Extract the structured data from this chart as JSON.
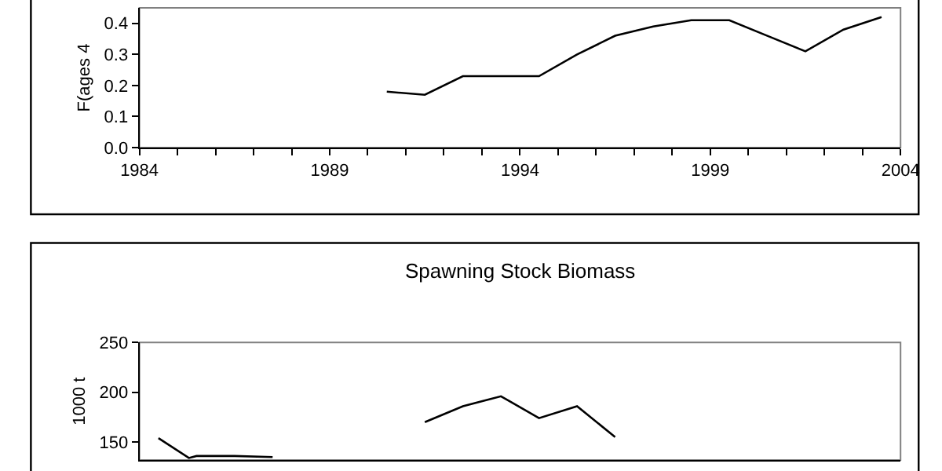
{
  "chart_data": [
    {
      "type": "line",
      "ylabel": "F(ages 4",
      "x": [
        1990.5,
        1991.5,
        1992.5,
        1993.5,
        1994.5,
        1995.5,
        1996.5,
        1997.5,
        1998.5,
        1999.5,
        2000.5,
        2001.5,
        2002.5,
        2003.5
      ],
      "series": [
        {
          "color": "#000000",
          "values": [
            0.18,
            0.17,
            0.23,
            0.23,
            0.23,
            0.3,
            0.36,
            0.39,
            0.41,
            0.41,
            0.36,
            0.31,
            0.38,
            0.42
          ]
        }
      ],
      "xlim": [
        1984,
        2004
      ],
      "xticks": [
        1984,
        {
          "value": 1985,
          "label": null
        },
        {
          "value": 1986,
          "label": null
        },
        {
          "value": 1987,
          "label": null
        },
        {
          "value": 1988,
          "label": null
        },
        1989,
        {
          "value": 1990,
          "label": null
        },
        {
          "value": 1991,
          "label": null
        },
        {
          "value": 1992,
          "label": null
        },
        {
          "value": 1993,
          "label": null
        },
        1994,
        {
          "value": 1995,
          "label": null
        },
        {
          "value": 1996,
          "label": null
        },
        {
          "value": 1997,
          "label": null
        },
        {
          "value": 1998,
          "label": null
        },
        1999,
        {
          "value": 2000,
          "label": null
        },
        {
          "value": 2001,
          "label": null
        },
        {
          "value": 2002,
          "label": null
        },
        {
          "value": 2003,
          "label": null
        },
        2004
      ],
      "ylim": [
        0,
        0.45
      ],
      "yticks": [
        {
          "value": 0,
          "label": "0.0"
        },
        0.1,
        0.2,
        0.3,
        0.4
      ],
      "grid": false
    },
    {
      "type": "line",
      "title": "Spawning Stock Biomass",
      "ylabel": "1000 t",
      "series": [
        {
          "color": "#000000",
          "x": [
            1984.5,
            1985.3,
            1985.5,
            1986.5,
            1987.5
          ],
          "values": [
            154,
            134,
            136,
            136,
            135
          ]
        },
        {
          "color": "#000000",
          "x": [
            1991.5,
            1992.5,
            1993.5,
            1994.5,
            1995.5,
            1996.5
          ],
          "values": [
            170,
            186,
            196,
            174,
            186,
            155
          ]
        }
      ],
      "xlim": [
        1984,
        2004
      ],
      "ylim": [
        132,
        250
      ],
      "yticks": [
        150,
        200,
        250
      ],
      "tick_labels": "y",
      "grid": false
    }
  ]
}
